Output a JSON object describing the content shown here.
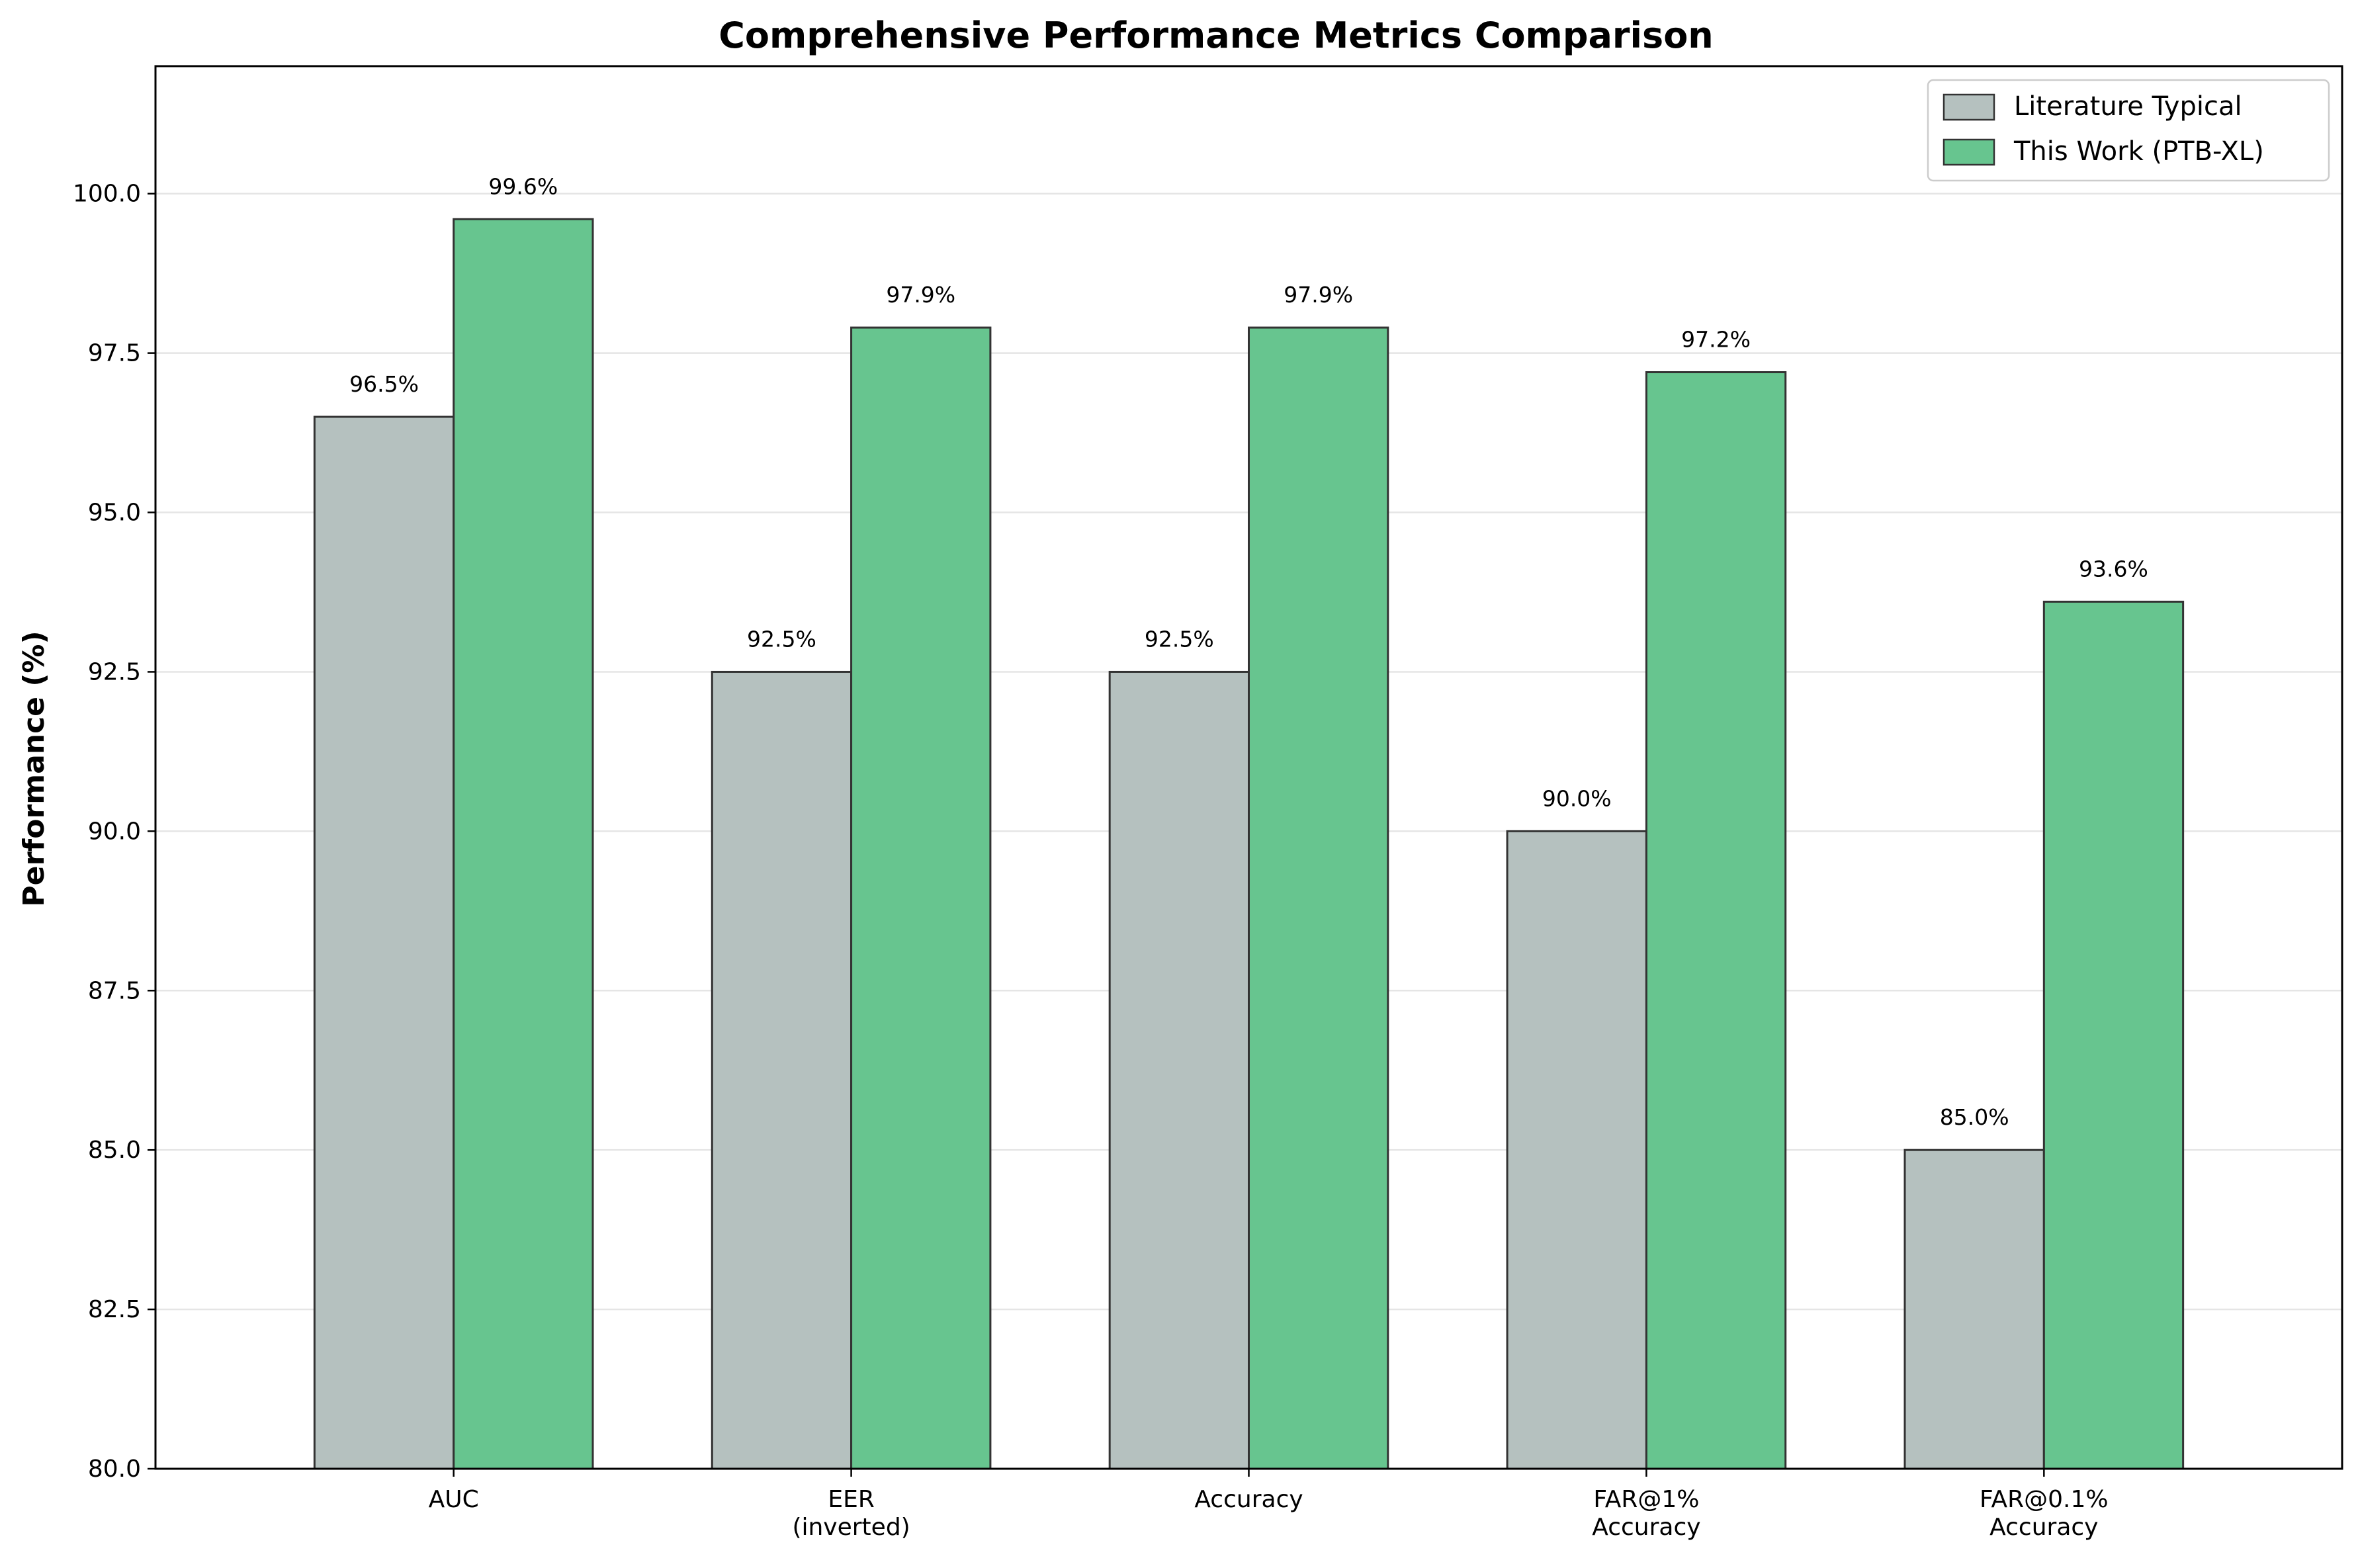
{
  "chart_data": {
    "type": "bar",
    "title": "Comprehensive Performance Metrics Comparison",
    "xlabel": "",
    "ylabel": "Performance (%)",
    "ylim": [
      80,
      102
    ],
    "yticks": [
      80.0,
      82.5,
      85.0,
      87.5,
      90.0,
      92.5,
      95.0,
      97.5,
      100.0
    ],
    "grid": "horizontal",
    "legend_position": "top-right",
    "categories": [
      [
        "AUC"
      ],
      [
        "EER",
        "(inverted)"
      ],
      [
        "Accuracy"
      ],
      [
        "FAR@1%",
        "Accuracy"
      ],
      [
        "FAR@0.1%",
        "Accuracy"
      ]
    ],
    "series": [
      {
        "name": "Literature Typical",
        "color": "#b5c1bf",
        "values": [
          96.5,
          92.5,
          92.5,
          90.0,
          85.0
        ],
        "labels": [
          "96.5%",
          "92.5%",
          "92.5%",
          "90.0%",
          "85.0%"
        ]
      },
      {
        "name": "This Work (PTB-XL)",
        "color": "#67c58f",
        "values": [
          99.6,
          97.9,
          97.9,
          97.2,
          93.6
        ],
        "labels": [
          "99.6%",
          "97.9%",
          "97.9%",
          "97.2%",
          "93.6%"
        ]
      }
    ]
  }
}
